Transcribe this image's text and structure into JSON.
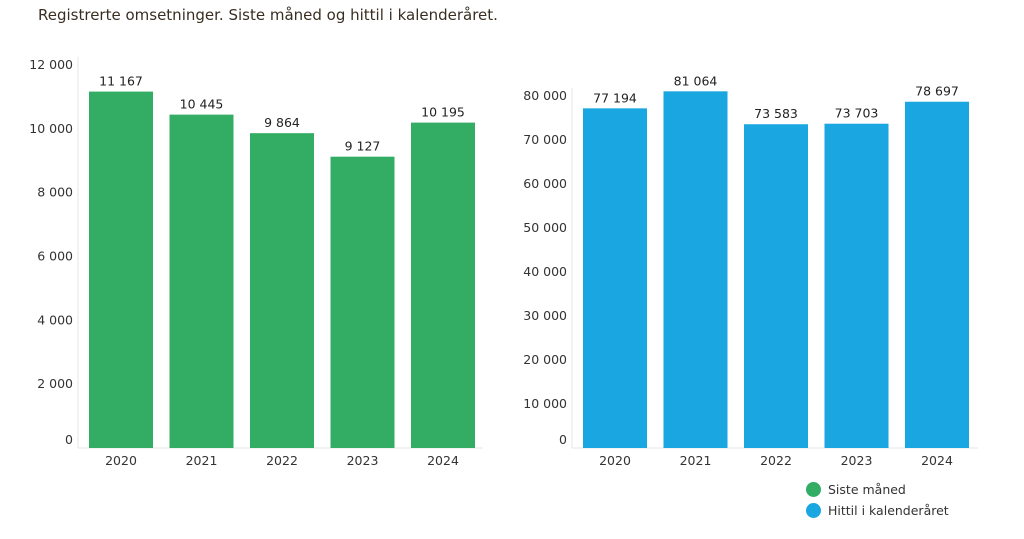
{
  "title": "Registrerte omsetninger. Siste måned og hittil i kalenderåret.",
  "colors": {
    "green": "#33ad63",
    "blue": "#1aa6e0"
  },
  "legend": [
    {
      "label": "Siste måned",
      "color": "#33ad63"
    },
    {
      "label": "Hittil i kalenderåret",
      "color": "#1aa6e0"
    }
  ],
  "chart_data": [
    {
      "type": "bar",
      "categories": [
        "2020",
        "2021",
        "2022",
        "2023",
        "2024"
      ],
      "series": [
        {
          "name": "Siste måned",
          "values": [
            11167,
            10445,
            9864,
            9127,
            10195
          ],
          "color": "#33ad63"
        }
      ],
      "value_labels": [
        "11 167",
        "10 445",
        "9 864",
        "9 127",
        "10 195"
      ],
      "ylim": [
        0,
        12000
      ],
      "yticks": [
        0,
        2000,
        4000,
        6000,
        8000,
        10000,
        12000
      ],
      "ytick_labels": [
        "0",
        "2 000",
        "4 000",
        "6 000",
        "8 000",
        "10 000",
        "12 000"
      ],
      "grid": false
    },
    {
      "type": "bar",
      "categories": [
        "2020",
        "2021",
        "2022",
        "2023",
        "2024"
      ],
      "series": [
        {
          "name": "Hittil i kalenderåret",
          "values": [
            77194,
            81064,
            73583,
            73703,
            78697
          ],
          "color": "#1aa6e0"
        }
      ],
      "value_labels": [
        "77 194",
        "81 064",
        "73 583",
        "73 703",
        "78 697"
      ],
      "ylim": [
        0,
        80000
      ],
      "yticks": [
        0,
        10000,
        20000,
        30000,
        40000,
        50000,
        60000,
        70000,
        80000
      ],
      "ytick_labels": [
        "0",
        "10 000",
        "20 000",
        "30 000",
        "40 000",
        "50 000",
        "60 000",
        "70 000",
        "80 000"
      ],
      "grid": false,
      "legend_position": "bottom-right"
    }
  ]
}
